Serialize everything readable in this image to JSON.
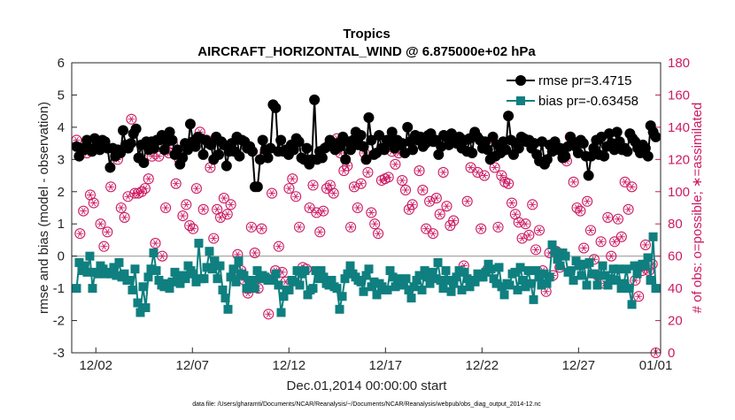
{
  "chart_data": {
    "type": "line",
    "title": "Tropics",
    "subtitle": "AIRCRAFT_HORIZONTAL_WIND @ 6.875000e+02 hPa",
    "xlabel": "Dec.01,2014 00:00:00 start",
    "ylabel": "rmse and bias (model - observation)",
    "ylabel_right": "# of obs: o=possible; ∗=assimilated",
    "footnote": "data file: /Users/gharamti/Documents/NCAR/Reanalysis/~/Documents/NCAR/Reanalysis/webpub/obs_diag_output_2014-12.nc",
    "xlim": [
      0.75,
      31.25
    ],
    "ylim": [
      -3,
      6
    ],
    "ylim_right": [
      0,
      180
    ],
    "x_ticks": [
      {
        "value": 2,
        "label": "12/02"
      },
      {
        "value": 7,
        "label": "12/07"
      },
      {
        "value": 12,
        "label": "12/12"
      },
      {
        "value": 17,
        "label": "12/17"
      },
      {
        "value": 22,
        "label": "12/22"
      },
      {
        "value": 27,
        "label": "12/27"
      },
      {
        "value": 31,
        "label": "01/01"
      }
    ],
    "y_ticks": [
      "-3",
      "-2",
      "-1",
      "0",
      "1",
      "2",
      "3",
      "4",
      "5",
      "6"
    ],
    "y_ticks_right": [
      "0",
      "20",
      "40",
      "60",
      "80",
      "100",
      "120",
      "140",
      "160",
      "180"
    ],
    "legend_position": "top-right",
    "series": [
      {
        "name": "rmse pr=3.4715",
        "color": "#000000",
        "marker": "circle",
        "axis": "left",
        "values": [
          3.4,
          3.1,
          3.35,
          3.3,
          3.6,
          3.35,
          3.25,
          3.65,
          3.45,
          3.3,
          3.6,
          3.55,
          3.35,
          2.75,
          3.35,
          3.1,
          3.3,
          3.2,
          3.9,
          3.45,
          3.35,
          3.5,
          3.8,
          3.95,
          3.05,
          3.45,
          2.9,
          3.55,
          3.3,
          3.55,
          3.35,
          3.6,
          3.6,
          3.75,
          3.3,
          3.55,
          3.85,
          3.6,
          3.15,
          3.3,
          2.85,
          3.05,
          3.5,
          3.3,
          4.1,
          3.55,
          3.4,
          3.7,
          3.65,
          3.15,
          3.6,
          3.5,
          3.45,
          3.0,
          3.7,
          3.15,
          3.55,
          3.45,
          2.8,
          3.25,
          3.5,
          3.25,
          3.7,
          3.1,
          3.6,
          3.55,
          3.35,
          3.4,
          3.25,
          2.15,
          2.15,
          3.0,
          3.6,
          3.3,
          3.05,
          3.35,
          4.7,
          4.6,
          3.25,
          3.6,
          3.25,
          3.3,
          3.15,
          3.45,
          3.3,
          3.65,
          3.55,
          3.05,
          3.0,
          3.35,
          2.85,
          3.0,
          4.85,
          3.0,
          3.25,
          3.05,
          3.35,
          3.4,
          3.6,
          3.4,
          3.3,
          3.5,
          3.4,
          3.7,
          3.0,
          3.55,
          3.3,
          3.6,
          3.85,
          3.45,
          3.75,
          3.4,
          3.0,
          4.3,
          3.6,
          3.15,
          3.2,
          3.75,
          3.35,
          3.3,
          3.6,
          3.55,
          3.85,
          3.35,
          3.6,
          3.45,
          3.5,
          3.2,
          4.0,
          3.55,
          3.3,
          3.75,
          3.6,
          3.7,
          3.4,
          3.5,
          3.75,
          3.8,
          3.55,
          3.6,
          3.15,
          3.4,
          3.75,
          3.7,
          3.45,
          3.8,
          3.6,
          3.5,
          3.7,
          3.35,
          3.6,
          3.25,
          3.65,
          3.2,
          3.85,
          3.7,
          3.6,
          3.35,
          3.55,
          3.3,
          3.0,
          3.7,
          3.1,
          3.45,
          3.2,
          3.55,
          3.3,
          4.35,
          3.6,
          3.15,
          3.5,
          3.35,
          3.7,
          3.65,
          3.55,
          3.6,
          3.35,
          3.5,
          3.15,
          2.95,
          3.55,
          2.85,
          3.0,
          3.45,
          3.25,
          3.55,
          3.3,
          3.35,
          3.05,
          3.1,
          3.4,
          3.7,
          3.55,
          3.4,
          3.2,
          3.6,
          3.5,
          3.1,
          2.5,
          3.1,
          3.35,
          3.6,
          3.15,
          3.7,
          3.1,
          3.4,
          3.8,
          3.5,
          3.3,
          3.85,
          3.55,
          3.3,
          3.35,
          3.25,
          3.8,
          3.65,
          3.55,
          3.35,
          3.2,
          3.45,
          3.35,
          3.1,
          4.05,
          3.85,
          3.7
        ]
      },
      {
        "name": "bias pr=-0.63458",
        "color": "#0f7f7f",
        "marker": "square",
        "axis": "left",
        "values": [
          -1.0,
          -0.2,
          -0.45,
          -0.3,
          -0.5,
          0.0,
          -1.0,
          -0.5,
          -0.55,
          -0.3,
          -0.4,
          -0.55,
          -0.5,
          -0.55,
          -0.35,
          -0.6,
          -0.2,
          -0.65,
          -0.55,
          -0.75,
          -0.75,
          -1.05,
          -0.4,
          -1.45,
          -1.75,
          -0.95,
          -1.6,
          -0.65,
          -0.4,
          0.1,
          -0.45,
          -0.75,
          -0.9,
          -0.95,
          -0.85,
          -1.0,
          -0.8,
          -0.5,
          -0.65,
          -0.85,
          -0.6,
          -0.7,
          -0.3,
          -0.45,
          -0.55,
          -0.8,
          0.4,
          -0.7,
          -0.7,
          -0.35,
          0.15,
          -0.4,
          -0.15,
          -0.7,
          -0.3,
          -1.05,
          -1.3,
          -1.65,
          -0.65,
          -0.4,
          -0.8,
          -0.15,
          -0.55,
          -0.6,
          -1.0,
          -0.75,
          -0.75,
          -1.0,
          -0.45,
          -0.7,
          -0.6,
          -0.65,
          -0.75,
          -0.7,
          -0.75,
          -0.55,
          -0.9,
          -1.75,
          -1.25,
          -1.05,
          -1.05,
          -0.75,
          -0.8,
          -0.45,
          -0.9,
          -0.55,
          -0.45,
          -1.2,
          -1.05,
          -1.0,
          -0.45,
          -0.7,
          -0.45,
          -0.65,
          -0.85,
          -0.9,
          -0.75,
          -0.95,
          -1.0,
          -1.65,
          -1.25,
          -0.7,
          -0.55,
          -0.3,
          -0.55,
          -0.65,
          -0.75,
          -0.8,
          -1.1,
          -0.6,
          -0.4,
          -0.95,
          -0.8,
          -1.2,
          -0.85,
          -0.95,
          -1.05,
          -1.05,
          -0.45,
          -0.65,
          -0.95,
          -0.7,
          -0.9,
          -0.8,
          -0.7,
          -1.05,
          -1.3,
          -0.95,
          -0.75,
          -0.6,
          -1.05,
          -0.45,
          -0.65,
          -0.85,
          -0.5,
          -0.7,
          -0.2,
          -0.75,
          -1.0,
          -0.45,
          -0.75,
          -1.1,
          -0.85,
          -0.65,
          -0.45,
          -1.05,
          -0.5,
          -0.7,
          -0.95,
          -0.75,
          -0.8,
          -0.55,
          -0.65,
          -0.65,
          -0.5,
          -0.25,
          -0.4,
          -0.7,
          -0.85,
          -0.35,
          -0.95,
          -1.2,
          -0.85,
          -0.9,
          -0.55,
          -0.5,
          -1.05,
          -0.35,
          -0.75,
          -0.95,
          -0.45,
          -0.85,
          -1.35,
          -0.45,
          -0.65,
          -0.9,
          -0.55,
          -0.85,
          -0.65,
          0.35,
          0.15,
          -0.1,
          -0.3,
          0.1,
          0.0,
          -0.5,
          -0.45,
          -0.75,
          -0.15,
          -0.3,
          -0.6,
          -0.25,
          -0.9,
          -0.2,
          -0.55,
          -0.55,
          -0.9,
          -0.6,
          -0.3,
          -0.6,
          -0.9,
          -0.7,
          -0.4,
          -0.75,
          -0.4,
          -1.0,
          -0.85,
          -0.4,
          -1.0,
          -1.5,
          -0.3,
          -0.55,
          -0.3,
          -0.25,
          -0.3,
          -0.05,
          -0.75,
          0.6,
          -1.0
        ]
      },
      {
        "name": "possible",
        "color": "#cc1a62",
        "marker": "open-circle",
        "axis": "right",
        "values": [
          132,
          74,
          88,
          124,
          98,
          93,
          128,
          80,
          66,
          75,
          103,
          126,
          120,
          90,
          84,
          97,
          145,
          99,
          99,
          100,
          102,
          108,
          122,
          68,
          122,
          60,
          90,
          124,
          130,
          105,
          120,
          85,
          92,
          79,
          77,
          102,
          137,
          89,
          132,
          115,
          71,
          89,
          84,
          96,
          86,
          92,
          50,
          61,
          51,
          45,
          37,
          78,
          62,
          40,
          77,
          124,
          24,
          99,
          51,
          66,
          50,
          44,
          102,
          108,
          97,
          78,
          53,
          52,
          90,
          104,
          87,
          75,
          88,
          102,
          104,
          99,
          133,
          124,
          113,
          116,
          78,
          103,
          90,
          105,
          124,
          112,
          87,
          80,
          74,
          107,
          108,
          109,
          125,
          117,
          124,
          107,
          101,
          89,
          92,
          132,
          113,
          101,
          77,
          94,
          74,
          96,
          86,
          112,
          91,
          79,
          82,
          130,
          133,
          54,
          94,
          115,
          135,
          112,
          77,
          110,
          52,
          131,
          115,
          78,
          110,
          106,
          105,
          93,
          86,
          81,
          71,
          80,
          73,
          92,
          64,
          76,
          51,
          38,
          62,
          48,
          63,
          53,
          124,
          119,
          134,
          106,
          90,
          88,
          65,
          94,
          76,
          58,
          48,
          69,
          43,
          84,
          60,
          69,
          83,
          72,
          106,
          89,
          103,
          45,
          35,
          51,
          67,
          51,
          55,
          0
        ]
      }
    ]
  }
}
